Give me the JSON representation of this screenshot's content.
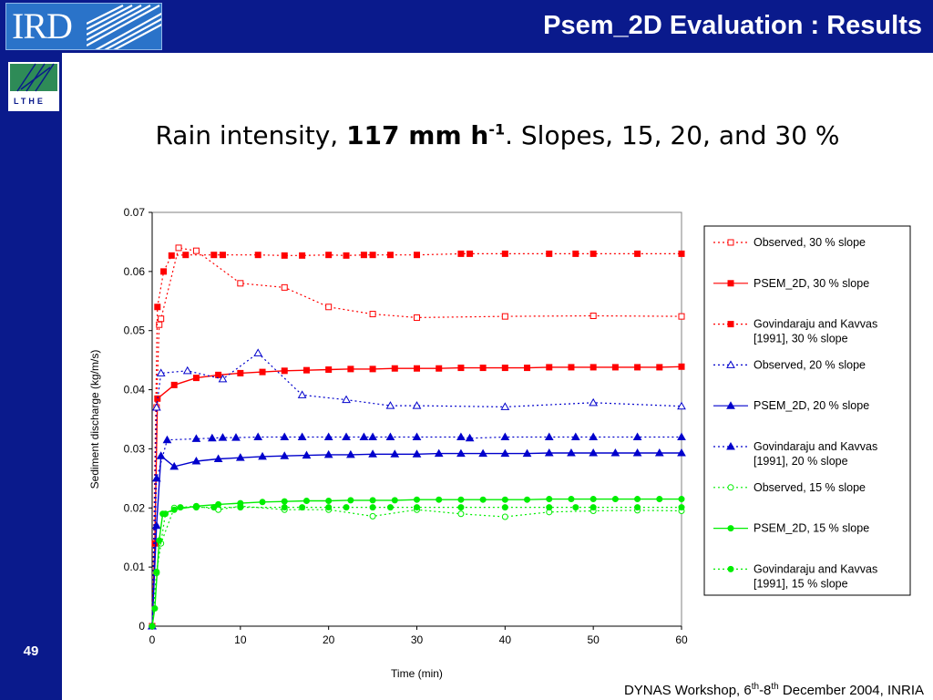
{
  "header": {
    "logo_text": "IRD",
    "title": "Psem_2D Evaluation : Results"
  },
  "sidebar": {
    "logo_text": "LTHE",
    "page_number": "49"
  },
  "subtitle": {
    "prefix": "Rain intensity, ",
    "bold": "117 mm h",
    "bold_sup": "-1",
    "suffix": ". Slopes, 15, 20, and 30 %"
  },
  "footer": {
    "part1": "DYNAS Workshop, 6",
    "sup1": "th",
    "part2": "-8",
    "sup2": "th",
    "part3": " December 2004, INRIA"
  },
  "colors": {
    "band": "#0a1a8c",
    "red": "#ff0000",
    "blue": "#0000cc",
    "green": "#00ee00"
  },
  "chart_data": {
    "type": "line",
    "xlabel": "Time (min)",
    "ylabel": "Sediment discharge (kg/m/s)",
    "xlim": [
      0,
      60
    ],
    "ylim": [
      0,
      0.07
    ],
    "xticks": [
      "0",
      "10",
      "20",
      "30",
      "40",
      "50",
      "60"
    ],
    "yticks": [
      "0",
      "0.01",
      "0.02",
      "0.03",
      "0.04",
      "0.05",
      "0.06",
      "0.07"
    ],
    "grid": false,
    "legend_position": "right",
    "series": [
      {
        "name": "Observed, 30 % slope",
        "color": "#ff0000",
        "marker": "square-open",
        "dash": "dotted",
        "x": [
          0,
          0.5,
          0.8,
          1,
          3,
          5,
          10,
          15,
          20,
          25,
          30,
          40,
          50,
          60
        ],
        "y": [
          0,
          0.037,
          0.051,
          0.052,
          0.064,
          0.0635,
          0.058,
          0.0573,
          0.054,
          0.0528,
          0.0522,
          0.0524,
          0.0525,
          0.0524
        ]
      },
      {
        "name": "PSEM_2D, 30 % slope",
        "color": "#ff0000",
        "marker": "square",
        "dash": "solid",
        "x": [
          0,
          0.3,
          0.6,
          2.5,
          5,
          7.5,
          10,
          12.5,
          15,
          17.5,
          20,
          22.5,
          25,
          27.5,
          30,
          32.5,
          35,
          37.5,
          40,
          42.5,
          45,
          47.5,
          50,
          52.5,
          55,
          57.5,
          60
        ],
        "y": [
          0,
          0.014,
          0.0385,
          0.0408,
          0.042,
          0.0425,
          0.0428,
          0.043,
          0.0432,
          0.0433,
          0.0434,
          0.0435,
          0.0435,
          0.0436,
          0.0436,
          0.0436,
          0.0437,
          0.0437,
          0.0437,
          0.0437,
          0.0438,
          0.0438,
          0.0438,
          0.0438,
          0.0438,
          0.0438,
          0.0439
        ]
      },
      {
        "name": "Govindaraju and Kavvas [1991], 30 % slope",
        "color": "#ff0000",
        "marker": "square",
        "dash": "dotted",
        "x": [
          0,
          0.6,
          1.3,
          2.2,
          3.8,
          7,
          8,
          12,
          15,
          17,
          20,
          22,
          24,
          25,
          27,
          30,
          35,
          36,
          40,
          45,
          48,
          50,
          55,
          60
        ],
        "y": [
          0,
          0.054,
          0.06,
          0.0627,
          0.0628,
          0.0628,
          0.0628,
          0.0628,
          0.0627,
          0.0627,
          0.0628,
          0.0627,
          0.0628,
          0.0628,
          0.0628,
          0.0628,
          0.063,
          0.063,
          0.063,
          0.063,
          0.063,
          0.063,
          0.063,
          0.063
        ]
      },
      {
        "name": "Observed, 20 % slope",
        "color": "#0000cc",
        "marker": "triangle-open",
        "dash": "dotted",
        "x": [
          0,
          0.5,
          1,
          4,
          8,
          12,
          17,
          22,
          27,
          30,
          40,
          50,
          60
        ],
        "y": [
          0,
          0.037,
          0.0428,
          0.0432,
          0.0418,
          0.0462,
          0.0391,
          0.0383,
          0.0373,
          0.0373,
          0.0371,
          0.0378,
          0.0372
        ]
      },
      {
        "name": "PSEM_2D, 20 % slope",
        "color": "#0000cc",
        "marker": "triangle",
        "dash": "solid",
        "x": [
          0,
          0.5,
          1,
          2.5,
          5,
          7.5,
          10,
          12.5,
          15,
          17.5,
          20,
          22.5,
          25,
          27.5,
          30,
          32.5,
          35,
          37.5,
          40,
          42.5,
          45,
          47.5,
          50,
          52.5,
          55,
          57.5,
          60
        ],
        "y": [
          0,
          0.017,
          0.0288,
          0.027,
          0.0279,
          0.0283,
          0.0285,
          0.0287,
          0.0288,
          0.0289,
          0.029,
          0.029,
          0.0291,
          0.0291,
          0.0291,
          0.0292,
          0.0292,
          0.0292,
          0.0292,
          0.0292,
          0.0293,
          0.0293,
          0.0293,
          0.0293,
          0.0293,
          0.0293,
          0.0293
        ]
      },
      {
        "name": "Govindaraju and Kavvas [1991], 20 % slope",
        "color": "#0000cc",
        "marker": "triangle",
        "dash": "dotted",
        "x": [
          0,
          0.5,
          1.7,
          5,
          6.8,
          8,
          9.5,
          12,
          15,
          17,
          20,
          22,
          24,
          25,
          27,
          30,
          35,
          36,
          40,
          45,
          48,
          50,
          55,
          60
        ],
        "y": [
          0,
          0.025,
          0.0315,
          0.0317,
          0.0318,
          0.0319,
          0.0319,
          0.032,
          0.032,
          0.032,
          0.032,
          0.032,
          0.032,
          0.032,
          0.032,
          0.032,
          0.032,
          0.0318,
          0.032,
          0.032,
          0.032,
          0.032,
          0.032,
          0.032
        ]
      },
      {
        "name": "Observed, 15 % slope",
        "color": "#00ee00",
        "marker": "circle-open",
        "dash": "dotted",
        "x": [
          0,
          0.5,
          1,
          2.5,
          5,
          7.5,
          10,
          15,
          20,
          25,
          30,
          35,
          40,
          45,
          50,
          55,
          60
        ],
        "y": [
          0,
          0.009,
          0.014,
          0.02,
          0.0203,
          0.0197,
          0.0203,
          0.0197,
          0.0197,
          0.0186,
          0.0197,
          0.019,
          0.0185,
          0.0193,
          0.0195,
          0.0196,
          0.0195
        ]
      },
      {
        "name": "PSEM_2D, 15 % slope",
        "color": "#00ee00",
        "marker": "circle",
        "dash": "solid",
        "x": [
          0,
          0.3,
          0.8,
          1.2,
          2.5,
          5,
          7.5,
          10,
          12.5,
          15,
          17.5,
          20,
          22.5,
          25,
          27.5,
          30,
          32.5,
          35,
          37.5,
          40,
          42.5,
          45,
          47.5,
          50,
          52.5,
          55,
          57.5,
          60
        ],
        "y": [
          0,
          0.003,
          0.0145,
          0.019,
          0.0197,
          0.0203,
          0.0206,
          0.0208,
          0.021,
          0.0211,
          0.0212,
          0.0212,
          0.0213,
          0.0213,
          0.0213,
          0.0214,
          0.0214,
          0.0214,
          0.0214,
          0.0214,
          0.0214,
          0.0215,
          0.0215,
          0.0215,
          0.0215,
          0.0215,
          0.0215,
          0.0215
        ]
      },
      {
        "name": "Govindaraju and Kavvas [1991], 15 % slope",
        "color": "#00ee00",
        "marker": "circle",
        "dash": "dotted",
        "x": [
          0,
          0.5,
          1.5,
          3.2,
          5,
          7,
          10,
          15,
          17,
          20,
          22,
          25,
          27,
          30,
          35,
          40,
          45,
          48,
          50,
          55,
          60
        ],
        "y": [
          0,
          0.0092,
          0.019,
          0.0201,
          0.0201,
          0.0201,
          0.0201,
          0.0201,
          0.0201,
          0.0201,
          0.0201,
          0.0201,
          0.0201,
          0.0201,
          0.0201,
          0.0201,
          0.0201,
          0.0201,
          0.0201,
          0.0201,
          0.0201
        ]
      }
    ]
  }
}
